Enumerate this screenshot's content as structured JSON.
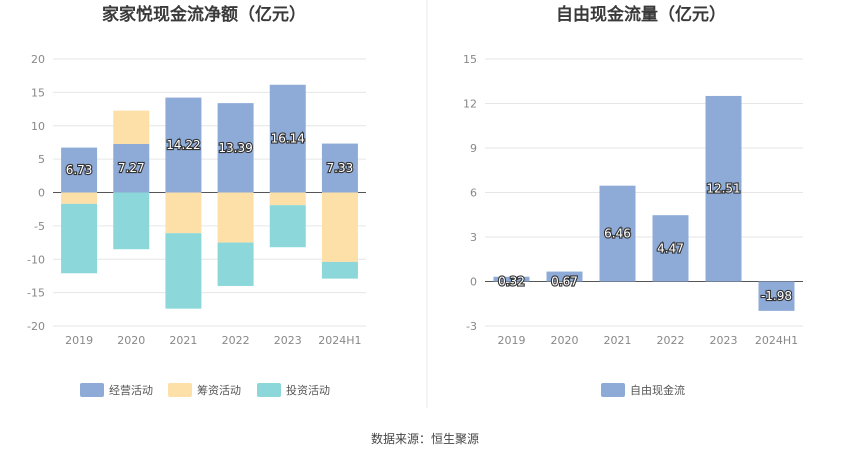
{
  "source_note": "数据来源：恒生聚源",
  "chart_data": [
    {
      "type": "bar",
      "stacked": true,
      "title": "家家悦现金流净额（亿元）",
      "categories": [
        "2019",
        "2020",
        "2021",
        "2022",
        "2023",
        "2024H1"
      ],
      "ylim": [
        -20,
        20
      ],
      "yticks": [
        -20,
        -15,
        -10,
        -5,
        0,
        5,
        10,
        15,
        20
      ],
      "grid": true,
      "legend_position": "bottom",
      "series": [
        {
          "name": "经营活动",
          "color": "#8eabd8",
          "values": [
            6.73,
            7.27,
            14.22,
            13.39,
            16.14,
            7.33
          ],
          "labels": [
            "6.73",
            "7.27",
            "14.22",
            "13.39",
            "16.14",
            "7.33"
          ]
        },
        {
          "name": "筹资活动",
          "color": "#fddfa8",
          "values": [
            -1.7,
            5.0,
            -6.1,
            -7.5,
            -1.9,
            -10.4
          ]
        },
        {
          "name": "投资活动",
          "color": "#8bd7d9",
          "values": [
            -10.4,
            -8.5,
            -11.3,
            -6.5,
            -6.3,
            -2.5
          ]
        }
      ]
    },
    {
      "type": "bar",
      "title": "自由现金流量（亿元）",
      "categories": [
        "2019",
        "2020",
        "2021",
        "2022",
        "2023",
        "2024H1"
      ],
      "ylim": [
        -3,
        15
      ],
      "yticks": [
        -3,
        0,
        3,
        6,
        9,
        12,
        15
      ],
      "grid": true,
      "legend_position": "bottom",
      "series": [
        {
          "name": "自由现金流",
          "color": "#8eabd8",
          "values": [
            0.32,
            0.67,
            6.46,
            4.47,
            12.51,
            -1.98
          ],
          "labels": [
            "0.32",
            "0.67",
            "6.46",
            "4.47",
            "12.51",
            "-1.98"
          ]
        }
      ]
    }
  ]
}
